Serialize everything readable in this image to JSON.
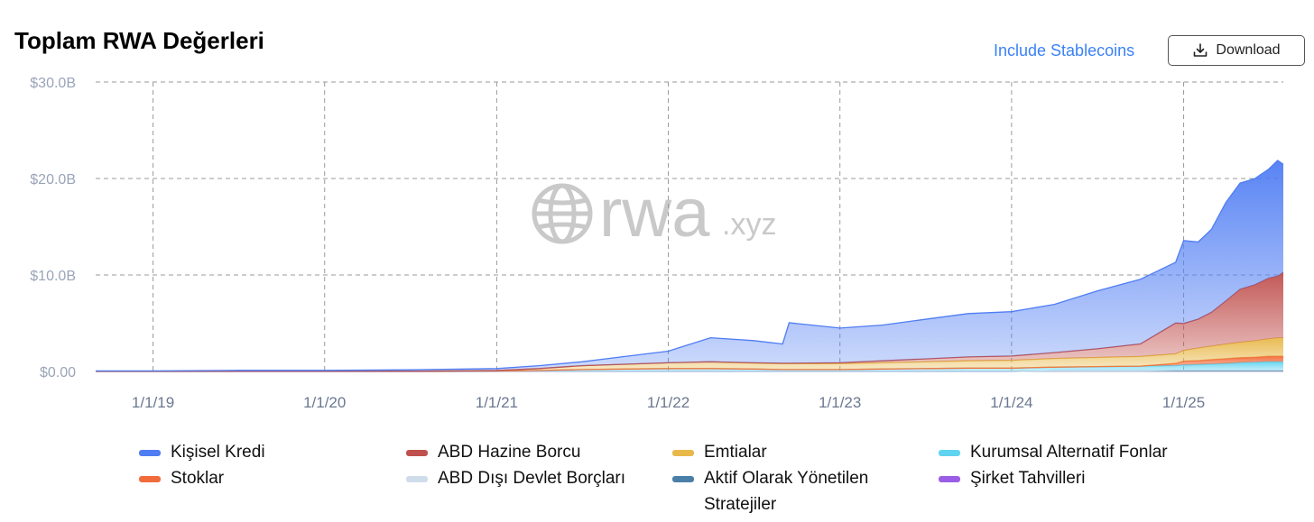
{
  "header": {
    "title": "Toplam RWA Değerleri",
    "toggle_label": "Include Stablecoins",
    "download_label": "Download",
    "download_icon": "download-icon"
  },
  "watermark": {
    "text_main": "rwa",
    "text_suffix": ".xyz",
    "icon": "globe-icon"
  },
  "chart_data": {
    "type": "area",
    "stacked": true,
    "x_type": "date",
    "x_range": [
      "2018-09-01",
      "2025-08-01"
    ],
    "x_ticks": [
      "1/1/19",
      "1/1/20",
      "1/1/21",
      "1/1/22",
      "1/1/23",
      "1/1/24",
      "1/1/25"
    ],
    "x_tick_dates": [
      "2019-01-01",
      "2020-01-01",
      "2021-01-01",
      "2022-01-01",
      "2023-01-01",
      "2024-01-01",
      "2025-01-01"
    ],
    "ylim": [
      0,
      30
    ],
    "y_ticks": [
      0,
      10,
      20,
      30
    ],
    "y_tick_labels": [
      "$0.00",
      "$10.0B",
      "$20.0B",
      "$30.0B"
    ],
    "y_unit": "USD billions",
    "grid": true,
    "legend_position": "bottom",
    "dates": [
      "2018-09-01",
      "2019-01-01",
      "2019-07-01",
      "2020-01-01",
      "2020-07-01",
      "2021-01-01",
      "2021-04-01",
      "2021-07-01",
      "2021-10-01",
      "2022-01-01",
      "2022-04-01",
      "2022-07-01",
      "2022-09-01",
      "2022-09-15",
      "2023-01-01",
      "2023-04-01",
      "2023-07-01",
      "2023-10-01",
      "2024-01-01",
      "2024-04-01",
      "2024-07-01",
      "2024-10-01",
      "2024-12-15",
      "2025-01-01",
      "2025-02-01",
      "2025-03-01",
      "2025-04-01",
      "2025-05-01",
      "2025-06-01",
      "2025-07-01",
      "2025-07-20",
      "2025-08-01"
    ],
    "series": [
      {
        "name": "Şirket Tahvilleri",
        "color": "#9b5de5",
        "values": [
          0,
          0,
          0,
          0,
          0,
          0,
          0,
          0,
          0,
          0,
          0,
          0,
          0,
          0,
          0,
          0,
          0,
          0,
          0,
          0.05,
          0.05,
          0.05,
          0.05,
          0.05,
          0.05,
          0.05,
          0.05,
          0.05,
          0.05,
          0.05,
          0.05,
          0.05
        ]
      },
      {
        "name": "Aktif Olarak Yönetilen Stratejiler",
        "color": "#4a7fa8",
        "values": [
          0,
          0,
          0,
          0,
          0,
          0,
          0,
          0,
          0,
          0,
          0,
          0,
          0,
          0,
          0,
          0,
          0,
          0,
          0,
          0,
          0,
          0,
          0.02,
          0.02,
          0.02,
          0.02,
          0.02,
          0.02,
          0.02,
          0.02,
          0.02,
          0.02
        ]
      },
      {
        "name": "ABD Dışı Devlet Borçları",
        "color": "#cfdcea",
        "values": [
          0,
          0,
          0,
          0,
          0,
          0,
          0,
          0,
          0,
          0,
          0,
          0,
          0,
          0,
          0,
          0,
          0,
          0,
          0,
          0,
          0,
          0,
          0.05,
          0.05,
          0.05,
          0.05,
          0.05,
          0.05,
          0.05,
          0.05,
          0.05,
          0.05
        ]
      },
      {
        "name": "Kurumsal Alternatif Fonlar",
        "color": "#5fd3f0",
        "values": [
          0.01,
          0.01,
          0.01,
          0.01,
          0.02,
          0.05,
          0.1,
          0.2,
          0.25,
          0.3,
          0.3,
          0.25,
          0.2,
          0.2,
          0.2,
          0.25,
          0.3,
          0.35,
          0.35,
          0.4,
          0.45,
          0.5,
          0.5,
          0.55,
          0.6,
          0.65,
          0.7,
          0.8,
          0.85,
          0.9,
          0.9,
          0.9
        ]
      },
      {
        "name": "Stoklar",
        "color": "#f26b3a",
        "values": [
          0,
          0,
          0,
          0,
          0,
          0,
          0,
          0,
          0,
          0,
          0,
          0,
          0,
          0,
          0,
          0,
          0,
          0,
          0,
          0,
          0,
          0,
          0.2,
          0.4,
          0.4,
          0.45,
          0.5,
          0.5,
          0.5,
          0.55,
          0.55,
          0.55
        ]
      },
      {
        "name": "Emtialar",
        "color": "#e8b84a",
        "values": [
          0,
          0,
          0,
          0,
          0,
          0.05,
          0.2,
          0.4,
          0.5,
          0.6,
          0.7,
          0.6,
          0.6,
          0.6,
          0.6,
          0.65,
          0.7,
          0.75,
          0.8,
          0.9,
          0.95,
          1.0,
          1.0,
          1.1,
          1.3,
          1.4,
          1.5,
          1.6,
          1.7,
          1.8,
          1.9,
          1.9
        ]
      },
      {
        "name": "ABD Hazine Borcu",
        "color": "#c0504d",
        "values": [
          0,
          0,
          0,
          0,
          0,
          0,
          0,
          0,
          0,
          0,
          0,
          0.05,
          0.05,
          0.05,
          0.1,
          0.2,
          0.3,
          0.4,
          0.45,
          0.6,
          0.9,
          1.3,
          3.2,
          2.8,
          3.0,
          3.5,
          4.5,
          5.5,
          5.8,
          6.3,
          6.4,
          6.8
        ]
      },
      {
        "name": "Kişisel Kredi",
        "color": "#4f7df3",
        "values": [
          0.05,
          0.05,
          0.1,
          0.1,
          0.15,
          0.2,
          0.3,
          0.4,
          0.8,
          1.2,
          2.5,
          2.3,
          2.0,
          4.2,
          3.6,
          3.7,
          4.1,
          4.5,
          4.6,
          5.0,
          6.0,
          6.7,
          6.3,
          8.6,
          8.0,
          8.6,
          10.2,
          11.0,
          11.0,
          11.3,
          12.0,
          11.2
        ]
      }
    ]
  },
  "legend": [
    {
      "label": "Kişisel Kredi",
      "color": "#4f7df3"
    },
    {
      "label": "ABD Hazine Borcu",
      "color": "#c0504d"
    },
    {
      "label": "Emtialar",
      "color": "#e8b84a"
    },
    {
      "label": "Kurumsal Alternatif Fonlar",
      "color": "#5fd3f0"
    },
    {
      "label": "Stoklar",
      "color": "#f26b3a"
    },
    {
      "label": "ABD Dışı Devlet Borçları",
      "color": "#cfdcea"
    },
    {
      "label": "Aktif Olarak Yönetilen Stratejiler",
      "color": "#4a7fa8"
    },
    {
      "label": "Şirket Tahvilleri",
      "color": "#9b5de5"
    }
  ]
}
